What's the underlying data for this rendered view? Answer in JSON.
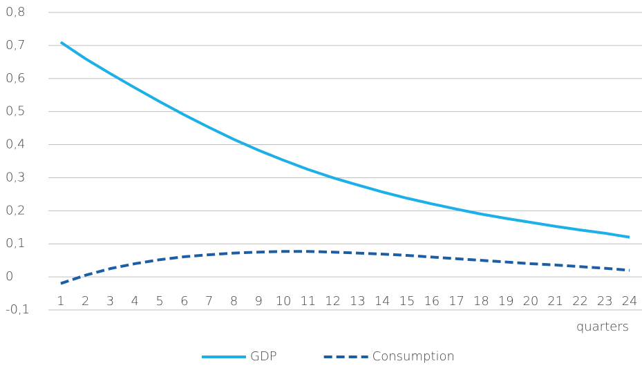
{
  "chart_data": {
    "type": "line",
    "categories": [
      "1",
      "2",
      "3",
      "4",
      "5",
      "6",
      "7",
      "8",
      "9",
      "10",
      "11",
      "12",
      "13",
      "14",
      "15",
      "16",
      "17",
      "18",
      "19",
      "20",
      "21",
      "22",
      "23",
      "24"
    ],
    "series": [
      {
        "name": "GDP",
        "color": "#1cb0e6",
        "dashed": false,
        "values": [
          0.71,
          0.66,
          0.615,
          0.572,
          0.53,
          0.49,
          0.452,
          0.416,
          0.383,
          0.353,
          0.325,
          0.3,
          0.278,
          0.257,
          0.238,
          0.221,
          0.205,
          0.19,
          0.177,
          0.165,
          0.153,
          0.142,
          0.132,
          0.12
        ]
      },
      {
        "name": "Consumption",
        "color": "#1b5ea6",
        "dashed": true,
        "values": [
          -0.02,
          0.005,
          0.025,
          0.04,
          0.052,
          0.061,
          0.067,
          0.072,
          0.075,
          0.077,
          0.077,
          0.075,
          0.072,
          0.069,
          0.065,
          0.06,
          0.055,
          0.05,
          0.045,
          0.04,
          0.036,
          0.031,
          0.026,
          0.02
        ]
      }
    ],
    "x_label": "quarters",
    "ylim": [
      -0.1,
      0.8
    ],
    "yticks": [
      {
        "value": -0.1,
        "label": "-0,1"
      },
      0,
      {
        "value": 0.1,
        "label": "0,1"
      },
      {
        "value": 0.2,
        "label": "0,2"
      },
      {
        "value": 0.3,
        "label": "0,3"
      },
      {
        "value": 0.4,
        "label": "0,4"
      },
      {
        "value": 0.5,
        "label": "0,5"
      },
      {
        "value": 0.6,
        "label": "0,6"
      },
      {
        "value": 0.7,
        "label": "0,7"
      },
      {
        "value": 0.8,
        "label": "0,8"
      }
    ],
    "grid": true,
    "legend": "bottom"
  }
}
